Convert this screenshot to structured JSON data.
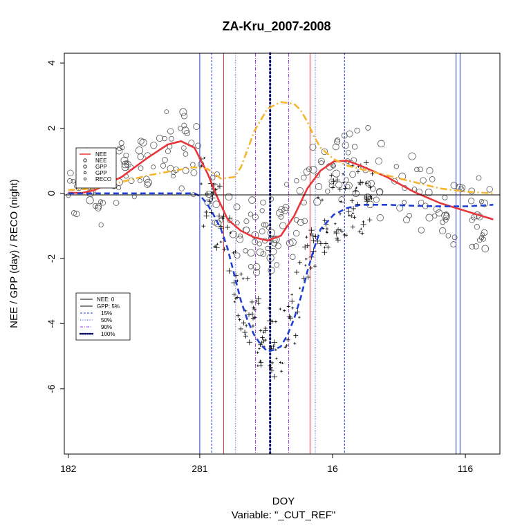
{
  "chart_data": {
    "type": "scatter",
    "title": "ZA-Kru_2007-2008",
    "xlabel": "DOY",
    "subtitle": "Variable: \"_CUT_REF\"",
    "ylabel": "NEE / GPP (day) / RECO (night)",
    "ylim": [
      -8,
      4.3
    ],
    "y_ticks": [
      -6,
      -4,
      -2,
      0,
      2,
      4
    ],
    "x_ticks": [
      {
        "pos": 0,
        "label": "182"
      },
      {
        "pos": 99,
        "label": "281"
      },
      {
        "pos": 199,
        "label": "16"
      },
      {
        "pos": 299,
        "label": "116"
      }
    ],
    "xlim": [
      -3,
      325
    ],
    "hlines": [
      0
    ],
    "vlines": [
      {
        "x": 99,
        "color": "#2233cc",
        "style": "solid"
      },
      {
        "x": 108,
        "color": "#2233cc",
        "style": "dashed"
      },
      {
        "x": 117,
        "color": "#e8363b",
        "style": "solid"
      },
      {
        "x": 126,
        "color": "#6a5acd",
        "style": "dotted"
      },
      {
        "x": 141,
        "color": "#9933dd",
        "style": "dashdot"
      },
      {
        "x": 152,
        "color": "#000066",
        "style": "bolddots"
      },
      {
        "x": 166,
        "color": "#9933dd",
        "style": "dashdot"
      },
      {
        "x": 182,
        "color": "#e8363b",
        "style": "solid"
      },
      {
        "x": 186,
        "color": "#6a5acd",
        "style": "dotted"
      },
      {
        "x": 208,
        "color": "#2233cc",
        "style": "dashed"
      },
      {
        "x": 292,
        "color": "#2233cc",
        "style": "solid"
      },
      {
        "x": 295,
        "color": "#2233cc",
        "style": "solid"
      }
    ],
    "series": [
      {
        "name": "NEE",
        "kind": "smooth",
        "color": "#e8363b",
        "x": [
          0,
          10,
          20,
          40,
          60,
          75,
          85,
          95,
          105,
          112,
          120,
          130,
          140,
          150,
          160,
          170,
          180,
          190,
          200,
          210,
          220,
          240,
          260,
          280,
          300,
          320
        ],
        "y": [
          0.02,
          0.01,
          0.1,
          0.5,
          1.1,
          1.5,
          1.6,
          1.4,
          0.6,
          -0.1,
          -0.8,
          -1.15,
          -1.35,
          -1.45,
          -1.3,
          -0.7,
          0.15,
          0.7,
          0.98,
          1.0,
          0.85,
          0.5,
          0.05,
          -0.3,
          -0.55,
          -0.8
        ]
      },
      {
        "name": "GPP",
        "kind": "smooth",
        "color": "#1f3fd6",
        "dashed": true,
        "x": [
          0,
          20,
          40,
          60,
          80,
          95,
          100,
          105,
          110,
          115,
          120,
          125,
          130,
          135,
          140,
          145,
          150,
          155,
          160,
          165,
          170,
          175,
          180,
          185,
          190,
          200,
          210,
          220,
          240,
          260,
          280,
          300,
          320
        ],
        "y": [
          0.0,
          0.0,
          0.0,
          0.0,
          0.0,
          0.0,
          -0.1,
          -0.35,
          -0.7,
          -1.1,
          -1.7,
          -2.5,
          -3.3,
          -3.9,
          -4.35,
          -4.65,
          -4.85,
          -4.8,
          -4.7,
          -4.35,
          -3.85,
          -3.2,
          -2.4,
          -1.7,
          -1.1,
          -0.65,
          -0.45,
          -0.35,
          -0.35,
          -0.38,
          -0.4,
          -0.4,
          -0.35
        ]
      },
      {
        "name": "RECO",
        "kind": "smooth",
        "color": "#f5b52e",
        "dashed": true,
        "x": [
          0,
          20,
          40,
          60,
          80,
          95,
          105,
          115,
          125,
          130,
          140,
          150,
          160,
          170,
          175,
          180,
          185,
          190,
          200,
          210,
          220,
          240,
          260,
          280,
          300,
          320
        ],
        "y": [
          0.1,
          0.15,
          0.35,
          0.55,
          0.7,
          0.8,
          0.75,
          0.45,
          0.5,
          0.8,
          1.9,
          2.6,
          2.8,
          2.75,
          2.55,
          2.2,
          1.75,
          1.4,
          1.05,
          0.85,
          0.75,
          0.55,
          0.35,
          0.15,
          0.05,
          0.0
        ]
      }
    ],
    "legend_top": [
      "NEE",
      "NEE",
      "GPP",
      "GPP",
      "RECO"
    ],
    "legend_bottom": [
      "NEE: 0",
      "GPP: 5%",
      "15%",
      "50%",
      "90%",
      "100%"
    ]
  }
}
